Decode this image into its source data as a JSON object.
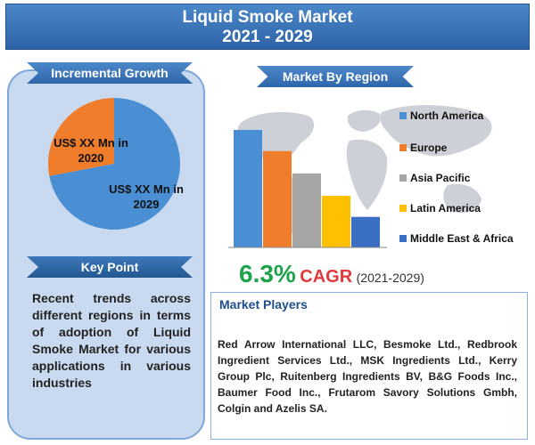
{
  "title": {
    "line1": "Liquid Smoke Market",
    "line2": "2021 - 2029"
  },
  "incremental": {
    "heading": "Incremental Growth",
    "label_2020": "US$ XX Mn in 2020",
    "label_2029": "US$ XX Mn in 2029"
  },
  "keypoint": {
    "heading": "Key Point",
    "text": "Recent trends across different regions in terms of adoption of Liquid Smoke Market for various applications in various industries"
  },
  "region": {
    "heading": "Market By Region"
  },
  "cagr": {
    "value": "6.3%",
    "word": "CAGR",
    "range": "(2021-2029)"
  },
  "players": {
    "heading": "Market Players",
    "text": "Red Arrow International LLC, Besmoke Ltd., Redbrook Ingredient Services Ltd., MSK Ingredients Ltd., Kerry Group Plc, Ruitenberg Ingredients BV, B&G Foods Inc., Baumer Food Inc., Frutarom Savory Solutions Gmbh, Colgin and Azelis SA."
  },
  "chart_data": [
    {
      "type": "pie",
      "labels": [
        "US$ XX Mn in 2020",
        "US$ XX Mn in 2029"
      ],
      "values": [
        28,
        72
      ],
      "colors": [
        "#ef7d2b",
        "#4a8fd4"
      ]
    },
    {
      "type": "bar",
      "categories": [
        "North America",
        "Europe",
        "Asia Pacific",
        "Latin America",
        "Middle East & Africa"
      ],
      "values": [
        100,
        82,
        63,
        44,
        26
      ],
      "colors": [
        "#4a8fd4",
        "#ef7d2b",
        "#a6a6a6",
        "#ffc000",
        "#3b6fc4"
      ],
      "legend": "right"
    }
  ]
}
